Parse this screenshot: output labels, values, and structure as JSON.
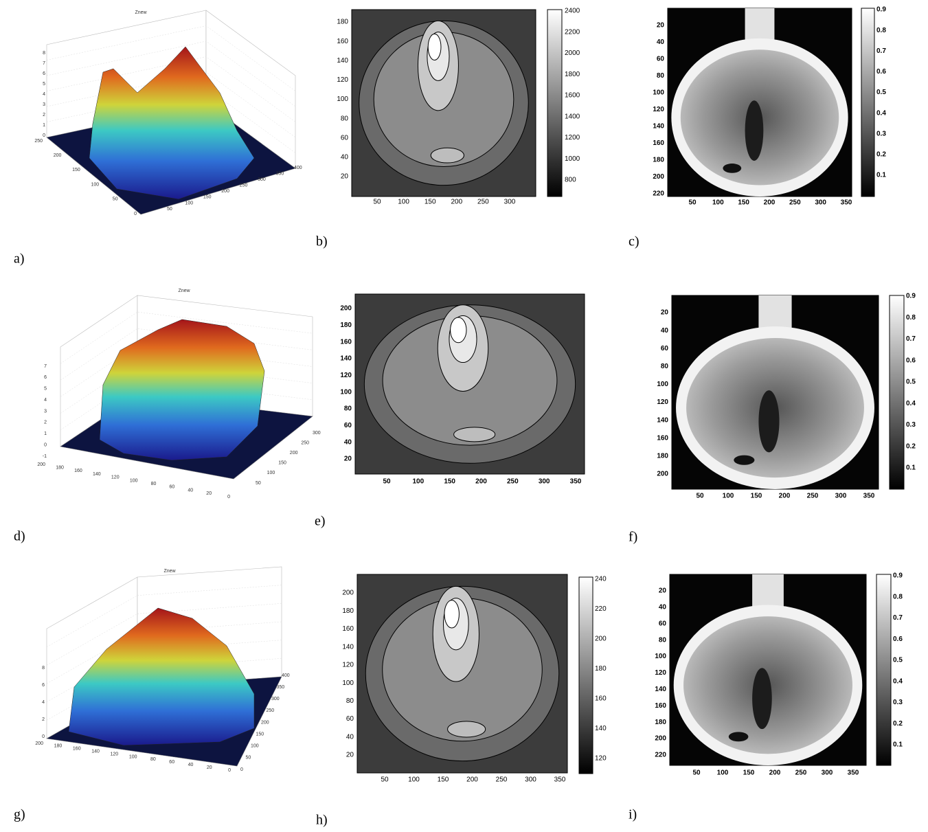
{
  "panels": [
    {
      "label": "a)",
      "kind": "surface",
      "title": "Znew",
      "z_ticks": [
        0,
        1,
        2,
        3,
        4,
        5,
        6,
        7,
        8
      ],
      "left_ticks": [
        250,
        200,
        150,
        100,
        50,
        0
      ],
      "right_ticks": [
        50,
        100,
        150,
        200,
        250,
        300,
        350,
        400
      ]
    },
    {
      "label": "b)",
      "kind": "contour",
      "y_ticks": [
        20,
        40,
        60,
        80,
        100,
        120,
        140,
        160,
        180
      ],
      "x_ticks": [
        50,
        100,
        150,
        200,
        250,
        300
      ],
      "colorbar_ticks": [
        800,
        1000,
        1200,
        1400,
        1600,
        1800,
        2000,
        2200,
        2400
      ]
    },
    {
      "label": "c)",
      "kind": "phase",
      "y_ticks": [
        20,
        40,
        60,
        80,
        100,
        120,
        140,
        160,
        180,
        200,
        220
      ],
      "x_ticks": [
        50,
        100,
        150,
        200,
        250,
        300,
        350
      ],
      "colorbar_ticks": [
        0.1,
        0.2,
        0.3,
        0.4,
        0.5,
        0.6,
        0.7,
        0.8,
        0.9
      ]
    },
    {
      "label": "d)",
      "kind": "surface",
      "title": "Znew",
      "z_ticks": [
        -1,
        0,
        1,
        2,
        3,
        4,
        5,
        6,
        7
      ],
      "left_ticks": [
        200,
        180,
        160,
        140,
        120,
        100,
        80,
        60,
        40,
        20,
        0
      ],
      "right_ticks": [
        50,
        100,
        150,
        200,
        250,
        300
      ]
    },
    {
      "label": "e)",
      "kind": "contour",
      "y_ticks": [
        20,
        40,
        60,
        80,
        100,
        120,
        140,
        160,
        180,
        200
      ],
      "x_ticks": [
        50,
        100,
        150,
        200,
        250,
        300,
        350
      ]
    },
    {
      "label": "f)",
      "kind": "phase",
      "y_ticks": [
        20,
        40,
        60,
        80,
        100,
        120,
        140,
        160,
        180,
        200
      ],
      "x_ticks": [
        50,
        100,
        150,
        200,
        250,
        300,
        350
      ],
      "colorbar_ticks": [
        0.1,
        0.2,
        0.3,
        0.4,
        0.5,
        0.6,
        0.7,
        0.8,
        0.9
      ]
    },
    {
      "label": "g)",
      "kind": "surface",
      "title": "Znew",
      "z_ticks": [
        0,
        2,
        4,
        6,
        8
      ],
      "left_ticks": [
        200,
        180,
        160,
        140,
        120,
        100,
        80,
        60,
        40,
        20,
        0
      ],
      "right_ticks": [
        0,
        50,
        100,
        150,
        200,
        250,
        300,
        350,
        400
      ]
    },
    {
      "label": "h)",
      "kind": "contour",
      "y_ticks": [
        20,
        40,
        60,
        80,
        100,
        120,
        140,
        160,
        180,
        200
      ],
      "x_ticks": [
        50,
        100,
        150,
        200,
        250,
        300,
        350
      ],
      "colorbar_ticks": [
        "120",
        "140",
        "160",
        "180",
        "200",
        "220",
        "240"
      ]
    },
    {
      "label": "i)",
      "kind": "phase",
      "y_ticks": [
        20,
        40,
        60,
        80,
        100,
        120,
        140,
        160,
        180,
        200,
        220
      ],
      "x_ticks": [
        50,
        100,
        150,
        200,
        250,
        300,
        350
      ],
      "colorbar_ticks": [
        0.1,
        0.2,
        0.3,
        0.4,
        0.5,
        0.6,
        0.7,
        0.8,
        0.9
      ]
    }
  ]
}
